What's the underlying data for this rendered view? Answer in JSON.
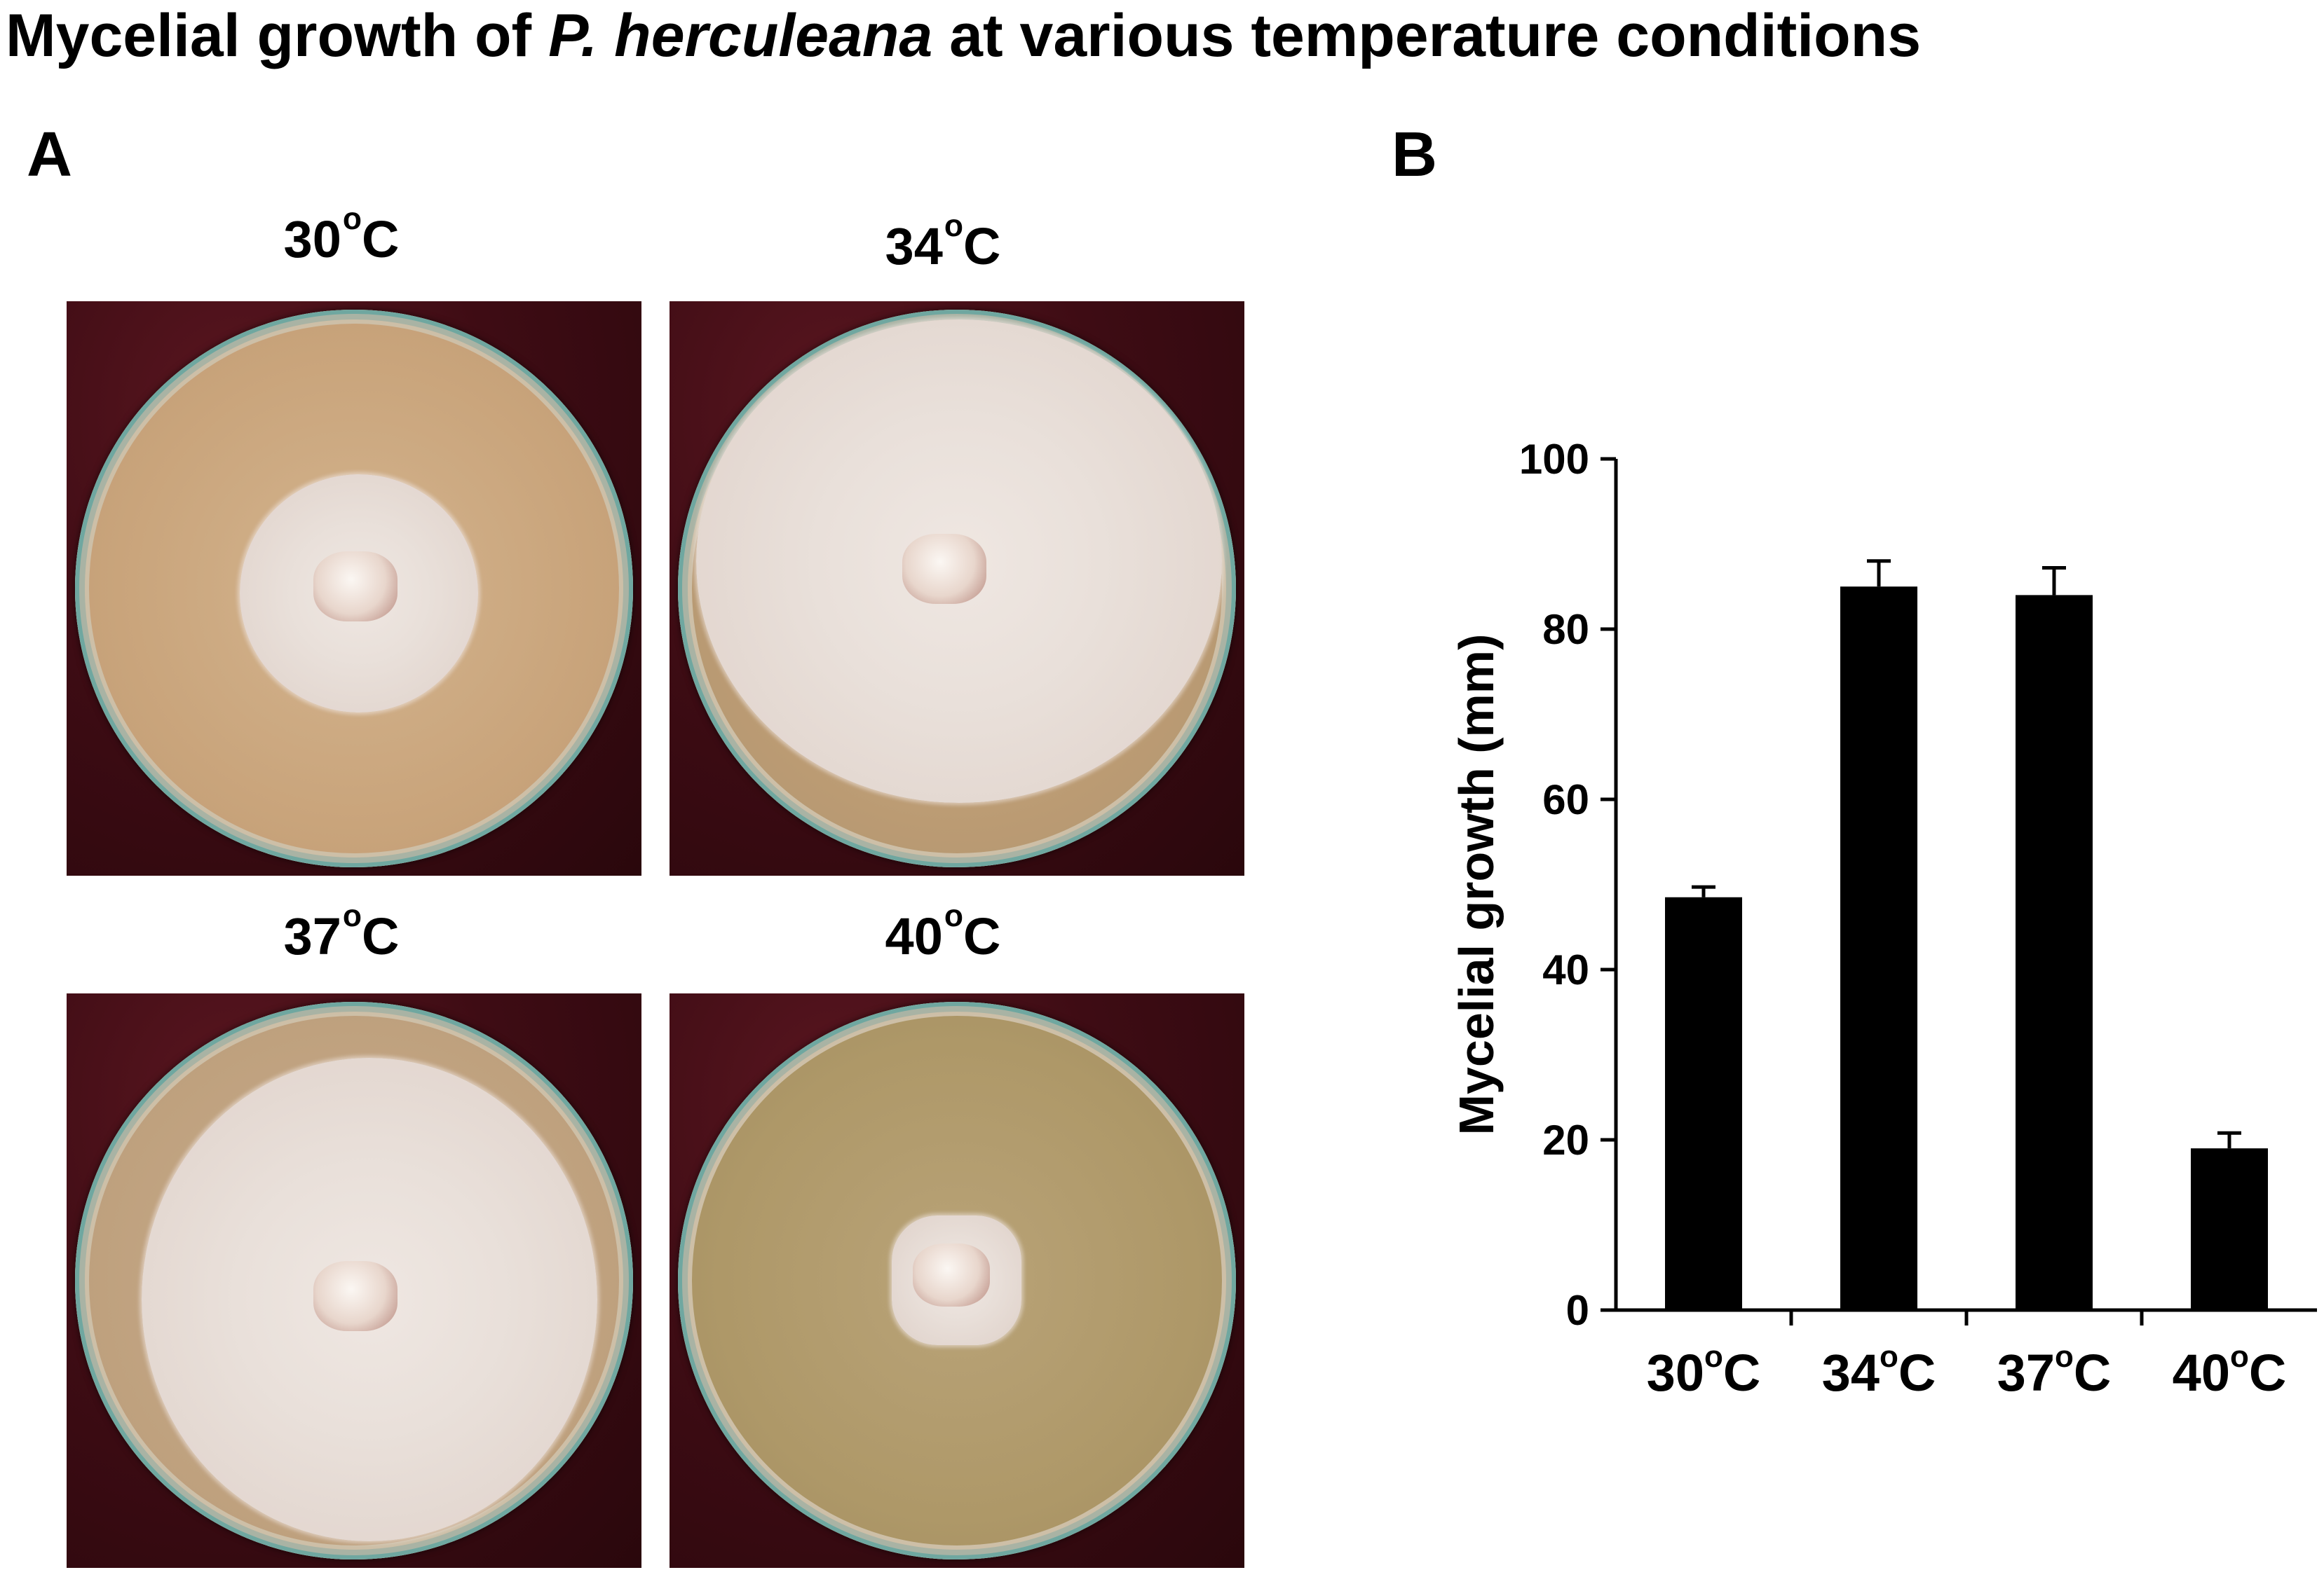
{
  "figure": {
    "title_prefix": "Mycelial growth of ",
    "title_species": "P. herculeana",
    "title_suffix": " at various temperature conditions",
    "panel_a_label": "A",
    "panel_b_label": "B"
  },
  "plates": [
    {
      "temp": "30",
      "unit": "C",
      "degree": "o"
    },
    {
      "temp": "34",
      "unit": "C",
      "degree": "o"
    },
    {
      "temp": "37",
      "unit": "C",
      "degree": "o"
    },
    {
      "temp": "40",
      "unit": "C",
      "degree": "o"
    }
  ],
  "chart_data": {
    "type": "bar",
    "categories": [
      "30°C",
      "34°C",
      "37°C",
      "40°C"
    ],
    "category_parts": [
      {
        "num": "30",
        "deg": "o",
        "unit": "C"
      },
      {
        "num": "34",
        "deg": "o",
        "unit": "C"
      },
      {
        "num": "37",
        "deg": "o",
        "unit": "C"
      },
      {
        "num": "40",
        "deg": "o",
        "unit": "C"
      }
    ],
    "values": [
      48.5,
      85,
      84,
      19
    ],
    "errors": [
      1.2,
      3,
      3.2,
      1.8
    ],
    "ylabel": "Mycelial growth (mm)",
    "xlabel": "",
    "ylim": [
      0,
      100
    ],
    "yticks": [
      0,
      20,
      40,
      60,
      80,
      100
    ],
    "grid": false,
    "bar_color": "#000000"
  }
}
